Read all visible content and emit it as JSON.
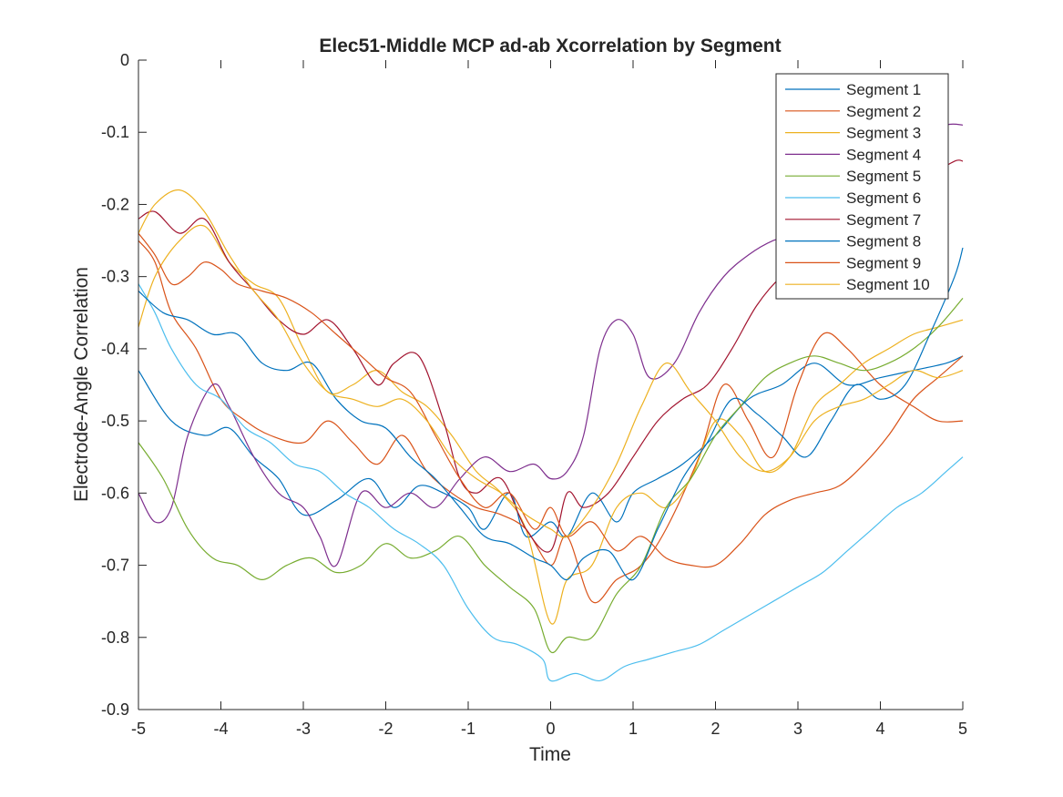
{
  "chart_data": {
    "type": "line",
    "title": "Elec51-Middle MCP ad-ab Xcorrelation by Segment",
    "xlabel": "Time",
    "ylabel": "Electrode-Angle Correlation",
    "xlim": [
      -5,
      5
    ],
    "ylim": [
      -0.9,
      0
    ],
    "xticks": [
      "-5",
      "-4",
      "-3",
      "-2",
      "-1",
      "0",
      "1",
      "2",
      "3",
      "4",
      "5"
    ],
    "yticks": [
      "0",
      "-0.1",
      "-0.2",
      "-0.3",
      "-0.4",
      "-0.5",
      "-0.6",
      "-0.7",
      "-0.8",
      "-0.9"
    ],
    "grid": false,
    "legend_position": "top-right",
    "series": [
      {
        "name": "Segment 1",
        "color": "#0072BD",
        "x": [
          -5,
          -4.6,
          -4.2,
          -3.9,
          -3.6,
          -3.3,
          -3,
          -2.6,
          -2.2,
          -1.9,
          -1.6,
          -1.3,
          -1,
          -0.8,
          -0.5,
          -0.3,
          0,
          0.2,
          0.5,
          0.8,
          1,
          1.3,
          1.6,
          2,
          2.4,
          2.8,
          3.2,
          3.6,
          4,
          4.4,
          4.8,
          5
        ],
        "y": [
          -0.43,
          -0.5,
          -0.52,
          -0.51,
          -0.55,
          -0.58,
          -0.63,
          -0.61,
          -0.58,
          -0.62,
          -0.59,
          -0.6,
          -0.62,
          -0.65,
          -0.6,
          -0.66,
          -0.64,
          -0.66,
          -0.6,
          -0.64,
          -0.6,
          -0.58,
          -0.56,
          -0.52,
          -0.47,
          -0.45,
          -0.42,
          -0.45,
          -0.44,
          -0.43,
          -0.42,
          -0.41
        ]
      },
      {
        "name": "Segment 2",
        "color": "#D95319",
        "x": [
          -5,
          -4.8,
          -4.6,
          -4.3,
          -4,
          -3.7,
          -3.4,
          -3,
          -2.7,
          -2.4,
          -2.1,
          -1.8,
          -1.5,
          -1.2,
          -0.9,
          -0.6,
          -0.3,
          0,
          0.2,
          0.5,
          0.8,
          1.1,
          1.4,
          1.8,
          2.1,
          2.4,
          2.7,
          3,
          3.3,
          3.6,
          4,
          4.4,
          4.7,
          5
        ],
        "y": [
          -0.25,
          -0.28,
          -0.35,
          -0.4,
          -0.47,
          -0.5,
          -0.52,
          -0.53,
          -0.5,
          -0.53,
          -0.56,
          -0.52,
          -0.57,
          -0.6,
          -0.62,
          -0.63,
          -0.65,
          -0.7,
          -0.66,
          -0.75,
          -0.72,
          -0.7,
          -0.65,
          -0.55,
          -0.45,
          -0.5,
          -0.55,
          -0.45,
          -0.38,
          -0.4,
          -0.45,
          -0.48,
          -0.5,
          -0.5
        ]
      },
      {
        "name": "Segment 3",
        "color": "#EDB120",
        "x": [
          -5,
          -4.8,
          -4.5,
          -4.2,
          -3.9,
          -3.6,
          -3.3,
          -3,
          -2.7,
          -2.4,
          -2.1,
          -1.8,
          -1.5,
          -1.2,
          -0.9,
          -0.6,
          -0.3,
          0,
          0.2,
          0.5,
          0.8,
          1.1,
          1.4,
          1.7,
          2,
          2.3,
          2.6,
          2.9,
          3.2,
          3.5,
          3.8,
          4.1,
          4.4,
          4.7,
          5
        ],
        "y": [
          -0.37,
          -0.3,
          -0.25,
          -0.23,
          -0.28,
          -0.31,
          -0.33,
          -0.4,
          -0.46,
          -0.45,
          -0.43,
          -0.46,
          -0.48,
          -0.52,
          -0.57,
          -0.6,
          -0.65,
          -0.78,
          -0.72,
          -0.7,
          -0.62,
          -0.6,
          -0.62,
          -0.58,
          -0.5,
          -0.52,
          -0.57,
          -0.55,
          -0.48,
          -0.45,
          -0.42,
          -0.4,
          -0.38,
          -0.37,
          -0.36
        ]
      },
      {
        "name": "Segment 4",
        "color": "#7E2F8E",
        "x": [
          -5,
          -4.8,
          -4.6,
          -4.4,
          -4.1,
          -3.9,
          -3.6,
          -3.3,
          -3,
          -2.8,
          -2.6,
          -2.3,
          -2,
          -1.7,
          -1.4,
          -1.1,
          -0.8,
          -0.5,
          -0.2,
          0,
          0.2,
          0.4,
          0.6,
          0.8,
          1,
          1.2,
          1.5,
          1.8,
          2.1,
          2.4,
          2.7,
          3,
          3.3,
          3.6,
          3.9,
          4.2,
          4.5,
          4.8,
          5
        ],
        "y": [
          -0.6,
          -0.64,
          -0.62,
          -0.52,
          -0.45,
          -0.48,
          -0.55,
          -0.6,
          -0.62,
          -0.66,
          -0.7,
          -0.6,
          -0.62,
          -0.6,
          -0.62,
          -0.58,
          -0.55,
          -0.57,
          -0.56,
          -0.58,
          -0.57,
          -0.52,
          -0.4,
          -0.36,
          -0.38,
          -0.44,
          -0.42,
          -0.35,
          -0.3,
          -0.27,
          -0.25,
          -0.24,
          -0.2,
          -0.16,
          -0.14,
          -0.13,
          -0.11,
          -0.09,
          -0.09
        ]
      },
      {
        "name": "Segment 5",
        "color": "#77AC30",
        "x": [
          -5,
          -4.7,
          -4.4,
          -4.1,
          -3.8,
          -3.5,
          -3.2,
          -2.9,
          -2.6,
          -2.3,
          -2,
          -1.7,
          -1.4,
          -1.1,
          -0.8,
          -0.5,
          -0.2,
          0,
          0.2,
          0.5,
          0.8,
          1.1,
          1.4,
          1.7,
          2,
          2.3,
          2.6,
          2.9,
          3.2,
          3.5,
          3.8,
          4.1,
          4.4,
          4.7,
          5
        ],
        "y": [
          -0.53,
          -0.58,
          -0.65,
          -0.69,
          -0.7,
          -0.72,
          -0.7,
          -0.69,
          -0.71,
          -0.7,
          -0.67,
          -0.69,
          -0.68,
          -0.66,
          -0.7,
          -0.73,
          -0.76,
          -0.82,
          -0.8,
          -0.8,
          -0.74,
          -0.7,
          -0.62,
          -0.58,
          -0.52,
          -0.48,
          -0.44,
          -0.42,
          -0.41,
          -0.42,
          -0.43,
          -0.42,
          -0.4,
          -0.37,
          -0.33
        ]
      },
      {
        "name": "Segment 6",
        "color": "#4DBEEE",
        "x": [
          -5,
          -4.8,
          -4.6,
          -4.3,
          -4,
          -3.7,
          -3.4,
          -3.1,
          -2.8,
          -2.5,
          -2.2,
          -1.9,
          -1.6,
          -1.3,
          -1,
          -0.7,
          -0.4,
          -0.1,
          0,
          0.3,
          0.6,
          0.9,
          1.2,
          1.5,
          1.8,
          2.1,
          2.4,
          2.7,
          3,
          3.3,
          3.6,
          3.9,
          4.2,
          4.5,
          4.8,
          5
        ],
        "y": [
          -0.31,
          -0.35,
          -0.4,
          -0.45,
          -0.47,
          -0.51,
          -0.53,
          -0.56,
          -0.57,
          -0.6,
          -0.62,
          -0.65,
          -0.67,
          -0.7,
          -0.76,
          -0.8,
          -0.81,
          -0.83,
          -0.86,
          -0.85,
          -0.86,
          -0.84,
          -0.83,
          -0.82,
          -0.81,
          -0.79,
          -0.77,
          -0.75,
          -0.73,
          -0.71,
          -0.68,
          -0.65,
          -0.62,
          -0.6,
          -0.57,
          -0.55
        ]
      },
      {
        "name": "Segment 7",
        "color": "#A2142F",
        "x": [
          -5,
          -4.8,
          -4.5,
          -4.2,
          -3.9,
          -3.6,
          -3.3,
          -3,
          -2.7,
          -2.4,
          -2.1,
          -1.9,
          -1.6,
          -1.3,
          -1.1,
          -0.9,
          -0.6,
          -0.3,
          0,
          0.2,
          0.4,
          0.7,
          1,
          1.3,
          1.6,
          1.9,
          2.2,
          2.5,
          2.8,
          3.1,
          3.4,
          3.7,
          4,
          4.3,
          4.6,
          4.9,
          5
        ],
        "y": [
          -0.22,
          -0.21,
          -0.24,
          -0.22,
          -0.28,
          -0.32,
          -0.36,
          -0.38,
          -0.36,
          -0.4,
          -0.45,
          -0.42,
          -0.41,
          -0.5,
          -0.58,
          -0.6,
          -0.58,
          -0.65,
          -0.68,
          -0.6,
          -0.62,
          -0.6,
          -0.55,
          -0.5,
          -0.47,
          -0.45,
          -0.4,
          -0.34,
          -0.3,
          -0.28,
          -0.25,
          -0.23,
          -0.2,
          -0.18,
          -0.16,
          -0.14,
          -0.14
        ]
      },
      {
        "name": "Segment 8",
        "color": "#0072BD",
        "x": [
          -5,
          -4.7,
          -4.4,
          -4.1,
          -3.8,
          -3.5,
          -3.2,
          -2.9,
          -2.6,
          -2.3,
          -2,
          -1.7,
          -1.4,
          -1.1,
          -0.8,
          -0.5,
          -0.2,
          0,
          0.2,
          0.4,
          0.7,
          1,
          1.3,
          1.6,
          1.9,
          2.2,
          2.5,
          2.8,
          3.1,
          3.4,
          3.7,
          4,
          4.3,
          4.6,
          4.9,
          5
        ],
        "y": [
          -0.32,
          -0.35,
          -0.36,
          -0.38,
          -0.38,
          -0.42,
          -0.43,
          -0.42,
          -0.47,
          -0.5,
          -0.51,
          -0.55,
          -0.58,
          -0.62,
          -0.66,
          -0.67,
          -0.69,
          -0.7,
          -0.72,
          -0.69,
          -0.68,
          -0.72,
          -0.65,
          -0.58,
          -0.53,
          -0.47,
          -0.49,
          -0.52,
          -0.55,
          -0.5,
          -0.45,
          -0.47,
          -0.45,
          -0.38,
          -0.3,
          -0.26
        ]
      },
      {
        "name": "Segment 9",
        "color": "#D95319",
        "x": [
          -5,
          -4.8,
          -4.6,
          -4.4,
          -4.2,
          -4,
          -3.8,
          -3.5,
          -3.2,
          -2.9,
          -2.6,
          -2.3,
          -2,
          -1.7,
          -1.4,
          -1.1,
          -0.8,
          -0.5,
          -0.2,
          0,
          0.2,
          0.5,
          0.8,
          1.1,
          1.4,
          1.7,
          2,
          2.3,
          2.6,
          2.9,
          3.2,
          3.5,
          3.8,
          4.1,
          4.4,
          4.7,
          5
        ],
        "y": [
          -0.24,
          -0.27,
          -0.31,
          -0.3,
          -0.28,
          -0.29,
          -0.31,
          -0.32,
          -0.33,
          -0.35,
          -0.38,
          -0.41,
          -0.44,
          -0.46,
          -0.52,
          -0.58,
          -0.62,
          -0.6,
          -0.65,
          -0.62,
          -0.66,
          -0.64,
          -0.68,
          -0.66,
          -0.69,
          -0.7,
          -0.7,
          -0.67,
          -0.63,
          -0.61,
          -0.6,
          -0.59,
          -0.56,
          -0.52,
          -0.47,
          -0.44,
          -0.41
        ]
      },
      {
        "name": "Segment 10",
        "color": "#EDB120",
        "x": [
          -5,
          -4.8,
          -4.5,
          -4.2,
          -3.9,
          -3.6,
          -3.3,
          -3,
          -2.7,
          -2.4,
          -2.1,
          -1.8,
          -1.5,
          -1.2,
          -0.9,
          -0.6,
          -0.3,
          0,
          0.2,
          0.5,
          0.8,
          1.1,
          1.4,
          1.7,
          2,
          2.3,
          2.6,
          2.9,
          3.2,
          3.5,
          3.8,
          4.1,
          4.4,
          4.7,
          5
        ],
        "y": [
          -0.24,
          -0.2,
          -0.18,
          -0.21,
          -0.27,
          -0.32,
          -0.36,
          -0.42,
          -0.46,
          -0.47,
          -0.48,
          -0.47,
          -0.5,
          -0.55,
          -0.58,
          -0.6,
          -0.63,
          -0.65,
          -0.66,
          -0.62,
          -0.56,
          -0.48,
          -0.42,
          -0.46,
          -0.5,
          -0.55,
          -0.57,
          -0.55,
          -0.5,
          -0.48,
          -0.47,
          -0.45,
          -0.43,
          -0.44,
          -0.43
        ]
      }
    ]
  }
}
